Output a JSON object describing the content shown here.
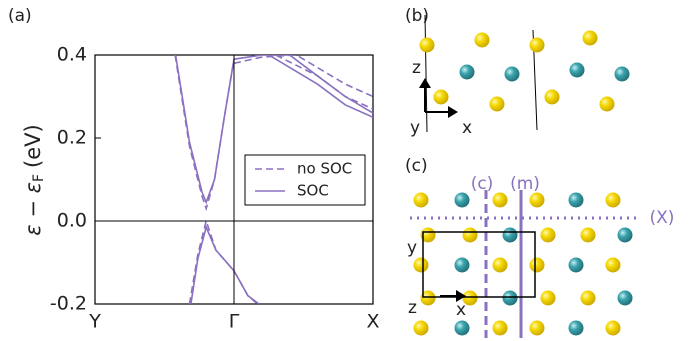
{
  "chart_data": {
    "type": "line",
    "ylabel": {
      "main": "ε − ε",
      "sub": "F",
      "unit": "(eV)"
    },
    "xlim": [
      0,
      2
    ],
    "ylim": [
      -0.2,
      0.4
    ],
    "xticks": [
      {
        "value": 0,
        "label": "Y"
      },
      {
        "value": 1,
        "label": "Γ"
      },
      {
        "value": 2,
        "label": "X"
      }
    ],
    "yticks": [
      0.4,
      0.2,
      {
        "value": 0,
        "label": "0.0"
      },
      -0.2
    ],
    "legend": "center right",
    "series": [
      {
        "name": "no SOC",
        "color": "#8a70c0",
        "dashed": true,
        "x": [
          0.576,
          0.68,
          0.77,
          0.8,
          0.86,
          0.93,
          1.0,
          null,
          0.68,
          0.74,
          0.8,
          0.87,
          1.0,
          1.1,
          1.17,
          null,
          1.0,
          1.2,
          1.45,
          1.6,
          1.8,
          2.0,
          null,
          1.3,
          1.6,
          1.8,
          2.0
        ],
        "values": [
          0.4,
          0.18,
          0.06,
          0.03,
          0.1,
          0.25,
          0.39,
          null,
          -0.2,
          -0.08,
          0.0,
          -0.07,
          -0.12,
          -0.18,
          -0.2,
          null,
          0.38,
          0.395,
          0.4,
          0.37,
          0.33,
          0.3,
          null,
          0.4,
          0.35,
          0.3,
          0.27
        ]
      },
      {
        "name": "SOC",
        "color": "#8a70c0",
        "dashed": false,
        "x": [
          0.58,
          0.68,
          0.77,
          0.8,
          0.86,
          0.93,
          1.0,
          null,
          0.69,
          0.74,
          0.8,
          0.87,
          1.0,
          1.1,
          1.18,
          null,
          1.0,
          1.2,
          1.4,
          1.6,
          1.8,
          2.0,
          null,
          1.25,
          1.6,
          1.8,
          2.0
        ],
        "values": [
          0.4,
          0.19,
          0.07,
          0.045,
          0.1,
          0.25,
          0.39,
          null,
          -0.2,
          -0.09,
          -0.015,
          -0.07,
          -0.12,
          -0.18,
          -0.2,
          null,
          0.39,
          0.4,
          0.4,
          0.35,
          0.3,
          0.26,
          null,
          0.4,
          0.33,
          0.28,
          0.25
        ]
      }
    ]
  },
  "panels": {
    "a": "(a)",
    "b": "(b)",
    "c": "(c)"
  },
  "structure_b": {
    "axes": {
      "z": "z",
      "y": "y",
      "x": "x"
    }
  },
  "structure_c": {
    "planes": {
      "c": "(c)",
      "m": "(m)",
      "X": "(X)"
    },
    "axes": {
      "y": "y",
      "z": "z",
      "x": "x"
    }
  }
}
